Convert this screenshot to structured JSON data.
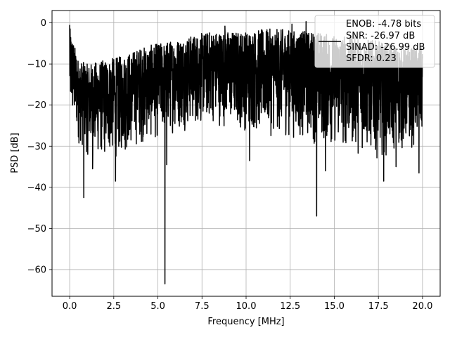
{
  "chart_data": {
    "type": "line",
    "xlabel": "Frequency [MHz]",
    "ylabel": "PSD [dB]",
    "xlim": [
      -1.0,
      21.0
    ],
    "ylim": [
      -66.5,
      3.0
    ],
    "xticks": [
      0.0,
      2.5,
      5.0,
      7.5,
      10.0,
      12.5,
      15.0,
      17.5,
      20.0
    ],
    "xtick_labels": [
      "0.0",
      "2.5",
      "5.0",
      "7.5",
      "10.0",
      "12.5",
      "15.0",
      "17.5",
      "20.0"
    ],
    "yticks": [
      0,
      -10,
      -20,
      -30,
      -40,
      -50,
      -60
    ],
    "ytick_labels": [
      "0",
      "−10",
      "−20",
      "−30",
      "−40",
      "−50",
      "−60"
    ],
    "grid": true,
    "legend_position": "top-right",
    "legend_lines": [
      "ENOB: -4.78 bits",
      "SNR: -26.97 dB",
      "SINAD: -26.99 dB",
      "SFDR: 0.23"
    ],
    "series": [
      {
        "color": "#000000",
        "description": "dense noisy PSD trace across 0-20 MHz",
        "baseline_envelope": {
          "x": [
            0.0,
            0.5,
            1.0,
            2.0,
            3.0,
            4.0,
            5.0,
            6.0,
            7.0,
            8.0,
            9.0,
            10.0,
            11.0,
            12.0,
            13.0,
            14.0,
            15.0,
            16.0,
            17.0,
            18.0,
            19.0,
            20.0
          ],
          "upper": [
            -1.0,
            -9.0,
            -10.0,
            -9.0,
            -8.0,
            -6.0,
            -5.0,
            -4.0,
            -3.0,
            -2.0,
            -2.0,
            -2.0,
            -1.5,
            -1.5,
            -2.0,
            -2.0,
            -3.0,
            -3.0,
            -4.0,
            -5.0,
            -6.0,
            -6.0
          ],
          "lower": [
            -24.0,
            -30.0,
            -33.0,
            -34.0,
            -33.0,
            -30.0,
            -29.0,
            -27.0,
            -26.0,
            -25.0,
            -26.0,
            -27.0,
            -28.0,
            -28.0,
            -29.0,
            -30.0,
            -31.0,
            -32.0,
            -33.0,
            -33.0,
            -32.0,
            -30.0
          ]
        },
        "dips": [
          {
            "x": 0.8,
            "y": -42.5
          },
          {
            "x": 1.3,
            "y": -35.5
          },
          {
            "x": 2.6,
            "y": -38.5
          },
          {
            "x": 5.4,
            "y": -63.5
          },
          {
            "x": 5.5,
            "y": -34.5
          },
          {
            "x": 10.2,
            "y": -33.5
          },
          {
            "x": 14.0,
            "y": -47.0
          },
          {
            "x": 14.5,
            "y": -36.0
          },
          {
            "x": 17.8,
            "y": -38.5
          },
          {
            "x": 18.5,
            "y": -35.0
          },
          {
            "x": 19.8,
            "y": -36.5
          }
        ],
        "peaks": [
          {
            "x": 0.0,
            "y": -0.5
          },
          {
            "x": 13.4,
            "y": 0.3
          },
          {
            "x": 12.6,
            "y": -0.3
          },
          {
            "x": 8.8,
            "y": -0.8
          }
        ]
      }
    ]
  }
}
